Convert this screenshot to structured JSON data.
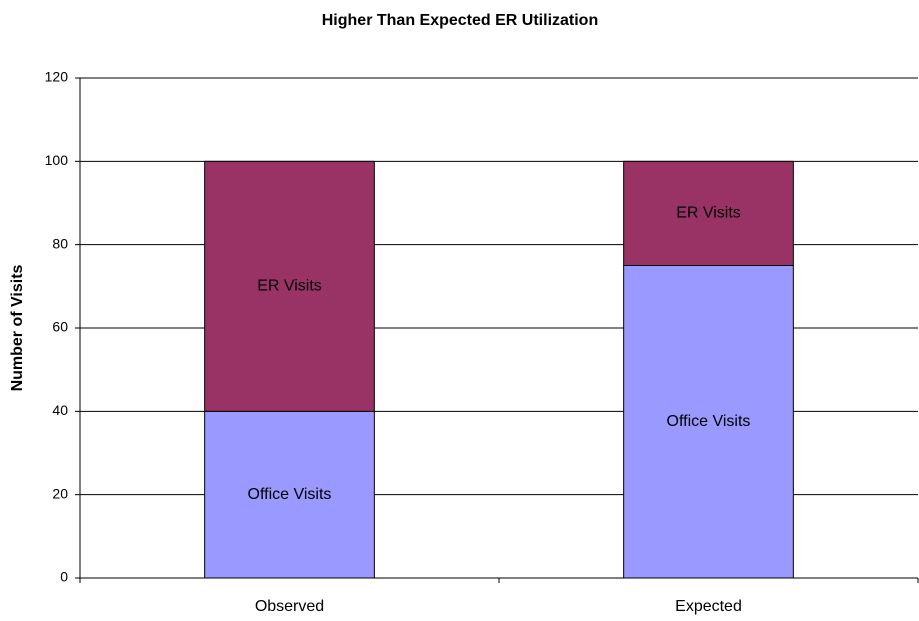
{
  "chart_data": {
    "type": "stacked_bar",
    "title": "Higher Than Expected ER Utilization",
    "y_label": "Number of Visits",
    "categories": [
      "Observed",
      "Expected"
    ],
    "series": [
      {
        "name": "Office Visits",
        "color": "#9999ff",
        "values": [
          40,
          75
        ]
      },
      {
        "name": "ER Visits",
        "color": "#993366",
        "values": [
          60,
          25
        ]
      }
    ],
    "ylim": [
      0,
      120
    ],
    "yticks": [
      0,
      20,
      40,
      60,
      80,
      100,
      120
    ],
    "grid": true
  }
}
